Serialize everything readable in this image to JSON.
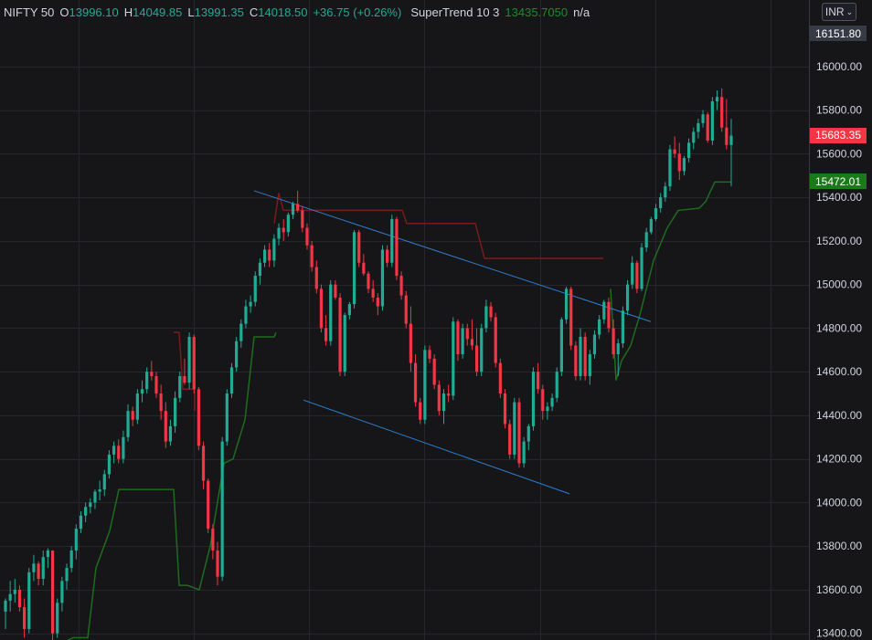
{
  "header": {
    "symbol": "NIFTY 50",
    "open_label": "O",
    "open": "13996.10",
    "high_label": "H",
    "high": "14049.85",
    "low_label": "L",
    "low": "13991.35",
    "close_label": "C",
    "close": "14018.50",
    "change": "+36.75 (+0.26%)",
    "indicator_name": "SuperTrend 10 3",
    "indicator_value": "13435.7050",
    "indicator_extra": "n/a"
  },
  "currency": {
    "label": "INR",
    "icon": "chevron-down-icon"
  },
  "price_tags": {
    "high": "16151.80",
    "last": "15683.35",
    "supertrend": "15472.01"
  },
  "colors": {
    "background": "#161619",
    "up": "#22ab94",
    "down": "#f23645",
    "supertrend_up": "#1f6b1f",
    "supertrend_down": "#7a1a1a",
    "trendline": "#2b7fd4",
    "grid": "#26272d"
  },
  "chart_data": {
    "type": "candlestick",
    "y_axis": {
      "ticks": [
        "13400.00",
        "13600.00",
        "13800.00",
        "14000.00",
        "14200.00",
        "14400.00",
        "14600.00",
        "14800.00",
        "15000.00",
        "15200.00",
        "15400.00",
        "15600.00",
        "15800.00",
        "16000.00"
      ],
      "range": [
        13380,
        16240
      ]
    },
    "candles": [
      [
        13500,
        13560,
        13420,
        13550
      ],
      [
        13550,
        13640,
        13500,
        13580
      ],
      [
        13580,
        13650,
        13540,
        13600
      ],
      [
        13600,
        13620,
        13500,
        13520
      ],
      [
        13520,
        13560,
        13380,
        13420
      ],
      [
        13420,
        13700,
        13400,
        13680
      ],
      [
        13680,
        13760,
        13640,
        13720
      ],
      [
        13720,
        13730,
        13620,
        13650
      ],
      [
        13650,
        13780,
        13620,
        13750
      ],
      [
        13750,
        13790,
        13700,
        13780
      ],
      [
        13780,
        13780,
        13360,
        13400
      ],
      [
        13400,
        13560,
        13380,
        13540
      ],
      [
        13540,
        13660,
        13500,
        13640
      ],
      [
        13640,
        13720,
        13600,
        13700
      ],
      [
        13700,
        13800,
        13680,
        13780
      ],
      [
        13780,
        13900,
        13740,
        13880
      ],
      [
        13880,
        13960,
        13860,
        13940
      ],
      [
        13940,
        14000,
        13910,
        13980
      ],
      [
        13980,
        14020,
        13950,
        14000
      ],
      [
        14000,
        14060,
        13970,
        14050
      ],
      [
        14050,
        14100,
        14010,
        14060
      ],
      [
        14060,
        14150,
        14030,
        14130
      ],
      [
        14130,
        14240,
        14110,
        14220
      ],
      [
        14220,
        14280,
        14180,
        14260
      ],
      [
        14260,
        14290,
        14180,
        14200
      ],
      [
        14200,
        14330,
        14180,
        14300
      ],
      [
        14300,
        14450,
        14280,
        14420
      ],
      [
        14420,
        14440,
        14350,
        14380
      ],
      [
        14380,
        14520,
        14360,
        14500
      ],
      [
        14500,
        14560,
        14460,
        14520
      ],
      [
        14520,
        14620,
        14500,
        14600
      ],
      [
        14600,
        14650,
        14560,
        14580
      ],
      [
        14580,
        14600,
        14480,
        14500
      ],
      [
        14500,
        14540,
        14380,
        14420
      ],
      [
        14420,
        14460,
        14250,
        14280
      ],
      [
        14280,
        14380,
        14260,
        14350
      ],
      [
        14350,
        14510,
        14320,
        14480
      ],
      [
        14480,
        14600,
        14460,
        14580
      ],
      [
        14580,
        14660,
        14540,
        14550
      ],
      [
        14550,
        14780,
        14520,
        14760
      ],
      [
        14760,
        14770,
        14500,
        14520
      ],
      [
        14520,
        14530,
        14240,
        14260
      ],
      [
        14260,
        14280,
        14060,
        14100
      ],
      [
        14100,
        14110,
        13860,
        13880
      ],
      [
        13880,
        13900,
        13740,
        13780
      ],
      [
        13780,
        13820,
        13620,
        13660
      ],
      [
        13660,
        14300,
        13640,
        14280
      ],
      [
        14280,
        14520,
        14260,
        14500
      ],
      [
        14500,
        14640,
        14480,
        14620
      ],
      [
        14620,
        14760,
        14600,
        14740
      ],
      [
        14740,
        14840,
        14710,
        14820
      ],
      [
        14820,
        14930,
        14800,
        14900
      ],
      [
        14900,
        14950,
        14870,
        14920
      ],
      [
        14920,
        15060,
        14900,
        15040
      ],
      [
        15040,
        15120,
        15000,
        15100
      ],
      [
        15100,
        15180,
        15080,
        15160
      ],
      [
        15160,
        15190,
        15080,
        15110
      ],
      [
        15110,
        15230,
        15080,
        15210
      ],
      [
        15210,
        15280,
        15180,
        15260
      ],
      [
        15260,
        15300,
        15200,
        15240
      ],
      [
        15240,
        15330,
        15220,
        15320
      ],
      [
        15320,
        15380,
        15300,
        15370
      ],
      [
        15370,
        15430,
        15330,
        15340
      ],
      [
        15340,
        15360,
        15240,
        15260
      ],
      [
        15260,
        15280,
        15160,
        15180
      ],
      [
        15180,
        15200,
        15060,
        15080
      ],
      [
        15080,
        15110,
        14960,
        14980
      ],
      [
        14980,
        15000,
        14780,
        14800
      ],
      [
        14800,
        14860,
        14720,
        14740
      ],
      [
        14740,
        15020,
        14720,
        15000
      ],
      [
        15000,
        15020,
        14930,
        14940
      ],
      [
        14940,
        14960,
        14580,
        14600
      ],
      [
        14600,
        14870,
        14580,
        14860
      ],
      [
        14860,
        14920,
        14840,
        14910
      ],
      [
        14910,
        15250,
        14890,
        15240
      ],
      [
        15240,
        15250,
        15080,
        15100
      ],
      [
        15100,
        15140,
        15040,
        15050
      ],
      [
        15050,
        15060,
        14960,
        14980
      ],
      [
        14980,
        15020,
        14920,
        14940
      ],
      [
        14940,
        14960,
        14860,
        14900
      ],
      [
        14900,
        15180,
        14880,
        15160
      ],
      [
        15160,
        15180,
        15080,
        15100
      ],
      [
        15100,
        15320,
        15080,
        15300
      ],
      [
        15300,
        15310,
        15020,
        15040
      ],
      [
        15040,
        15060,
        14930,
        14950
      ],
      [
        14950,
        14970,
        14800,
        14820
      ],
      [
        14820,
        14900,
        14600,
        14640
      ],
      [
        14640,
        14680,
        14440,
        14460
      ],
      [
        14460,
        14480,
        14360,
        14380
      ],
      [
        14380,
        14720,
        14360,
        14700
      ],
      [
        14700,
        14720,
        14640,
        14660
      ],
      [
        14660,
        14680,
        14520,
        14540
      ],
      [
        14540,
        14560,
        14400,
        14420
      ],
      [
        14420,
        14520,
        14360,
        14500
      ],
      [
        14500,
        14540,
        14460,
        14490
      ],
      [
        14490,
        14850,
        14470,
        14830
      ],
      [
        14830,
        14840,
        14650,
        14680
      ],
      [
        14680,
        14820,
        14660,
        14800
      ],
      [
        14800,
        14820,
        14720,
        14750
      ],
      [
        14750,
        14840,
        14700,
        14720
      ],
      [
        14720,
        14800,
        14580,
        14600
      ],
      [
        14600,
        14820,
        14580,
        14800
      ],
      [
        14800,
        14930,
        14780,
        14900
      ],
      [
        14900,
        14920,
        14830,
        14850
      ],
      [
        14850,
        14870,
        14620,
        14640
      ],
      [
        14640,
        14660,
        14480,
        14500
      ],
      [
        14500,
        14520,
        14340,
        14360
      ],
      [
        14360,
        14380,
        14200,
        14220
      ],
      [
        14220,
        14480,
        14200,
        14460
      ],
      [
        14460,
        14480,
        14160,
        14180
      ],
      [
        14180,
        14300,
        14160,
        14280
      ],
      [
        14280,
        14360,
        14240,
        14350
      ],
      [
        14350,
        14620,
        14330,
        14600
      ],
      [
        14600,
        14640,
        14500,
        14520
      ],
      [
        14520,
        14540,
        14380,
        14420
      ],
      [
        14420,
        14460,
        14380,
        14440
      ],
      [
        14440,
        14500,
        14420,
        14480
      ],
      [
        14480,
        14620,
        14460,
        14600
      ],
      [
        14600,
        14850,
        14580,
        14840
      ],
      [
        14840,
        14990,
        14820,
        14980
      ],
      [
        14980,
        14990,
        14700,
        14720
      ],
      [
        14720,
        14740,
        14560,
        14580
      ],
      [
        14580,
        14800,
        14560,
        14760
      ],
      [
        14760,
        14780,
        14560,
        14580
      ],
      [
        14580,
        14700,
        14540,
        14680
      ],
      [
        14680,
        14790,
        14660,
        14770
      ],
      [
        14770,
        14860,
        14750,
        14840
      ],
      [
        14840,
        14930,
        14820,
        14920
      ],
      [
        14920,
        14940,
        14780,
        14800
      ],
      [
        14800,
        14840,
        14660,
        14680
      ],
      [
        14680,
        14750,
        14580,
        14730
      ],
      [
        14730,
        14900,
        14710,
        14880
      ],
      [
        14880,
        15020,
        14860,
        15000
      ],
      [
        15000,
        15130,
        14980,
        15100
      ],
      [
        15100,
        15110,
        14960,
        14980
      ],
      [
        14980,
        15190,
        14970,
        15170
      ],
      [
        15170,
        15260,
        15150,
        15240
      ],
      [
        15240,
        15310,
        15230,
        15300
      ],
      [
        15300,
        15370,
        15290,
        15350
      ],
      [
        15350,
        15420,
        15330,
        15400
      ],
      [
        15400,
        15470,
        15380,
        15450
      ],
      [
        15450,
        15640,
        15430,
        15620
      ],
      [
        15620,
        15680,
        15580,
        15600
      ],
      [
        15600,
        15650,
        15480,
        15520
      ],
      [
        15520,
        15590,
        15500,
        15580
      ],
      [
        15580,
        15670,
        15560,
        15650
      ],
      [
        15650,
        15720,
        15620,
        15700
      ],
      [
        15700,
        15760,
        15670,
        15740
      ],
      [
        15740,
        15800,
        15720,
        15780
      ],
      [
        15780,
        15790,
        15650,
        15660
      ],
      [
        15660,
        15860,
        15640,
        15840
      ],
      [
        15840,
        15890,
        15800,
        15860
      ],
      [
        15860,
        15900,
        15700,
        15720
      ],
      [
        15720,
        15850,
        15620,
        15640
      ],
      [
        15640,
        15760,
        15450,
        15683
      ]
    ]
  }
}
